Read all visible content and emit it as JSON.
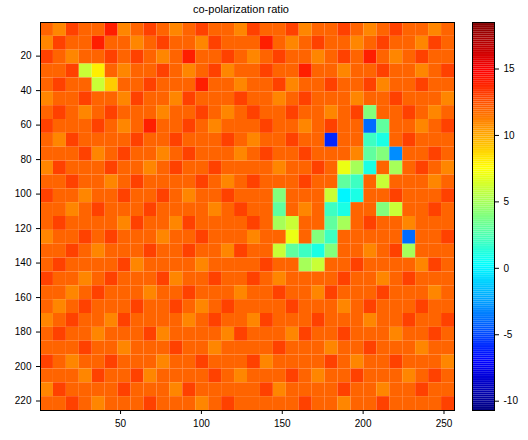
{
  "chart_data": {
    "type": "heatmap",
    "title": "co-polarization ratio",
    "xlim": [
      0.5,
      256.5
    ],
    "ylim": [
      0.5,
      225.5
    ],
    "xticks": [
      50,
      100,
      150,
      200,
      250
    ],
    "yticks": [
      20,
      40,
      60,
      80,
      100,
      120,
      140,
      160,
      180,
      200,
      220
    ],
    "colorbar_range": [
      -10.7,
      18.5
    ],
    "colorbar_ticks": [
      -10,
      -5,
      0,
      5,
      10,
      15
    ],
    "z": [
      [
        12,
        11,
        13,
        12,
        12,
        14,
        11,
        12,
        13,
        12,
        11,
        12,
        13,
        12,
        12,
        11,
        13,
        12,
        12,
        13,
        11,
        12,
        12,
        13,
        12,
        11,
        12,
        13,
        12,
        12,
        11,
        12
      ],
      [
        11,
        13,
        12,
        12,
        14,
        12,
        12,
        11,
        12,
        13,
        12,
        12,
        11,
        13,
        12,
        12,
        12,
        14,
        12,
        11,
        12,
        13,
        12,
        12,
        11,
        12,
        13,
        12,
        12,
        11,
        13,
        12
      ],
      [
        13,
        12,
        11,
        12,
        12,
        13,
        12,
        13,
        12,
        11,
        12,
        14,
        12,
        12,
        13,
        12,
        11,
        12,
        13,
        12,
        12,
        11,
        12,
        13,
        12,
        14,
        12,
        11,
        12,
        13,
        12,
        12
      ],
      [
        12,
        12,
        13,
        6,
        8,
        12,
        11,
        12,
        12,
        13,
        12,
        11,
        12,
        13,
        11,
        12,
        12,
        13,
        12,
        12,
        14,
        12,
        12,
        11,
        12,
        12,
        13,
        12,
        12,
        11,
        12,
        13
      ],
      [
        12,
        13,
        12,
        12,
        6,
        9,
        12,
        12,
        13,
        12,
        12,
        12,
        14,
        12,
        12,
        11,
        12,
        12,
        13,
        11,
        12,
        12,
        13,
        12,
        12,
        13,
        11,
        12,
        12,
        13,
        12,
        12
      ],
      [
        11,
        12,
        12,
        13,
        12,
        12,
        11,
        13,
        12,
        12,
        11,
        13,
        12,
        12,
        12,
        13,
        12,
        12,
        11,
        12,
        13,
        12,
        12,
        12,
        11,
        12,
        12,
        13,
        12,
        12,
        12,
        11
      ],
      [
        12,
        13,
        12,
        11,
        12,
        13,
        12,
        12,
        12,
        11,
        12,
        12,
        13,
        12,
        11,
        12,
        13,
        12,
        12,
        13,
        12,
        12,
        11,
        12,
        13,
        4,
        12,
        12,
        13,
        12,
        11,
        12
      ],
      [
        13,
        12,
        12,
        12,
        13,
        12,
        11,
        12,
        14,
        12,
        12,
        13,
        12,
        11,
        12,
        12,
        12,
        13,
        12,
        12,
        11,
        12,
        13,
        12,
        12,
        -4,
        3,
        12,
        12,
        11,
        12,
        13
      ],
      [
        12,
        11,
        13,
        12,
        12,
        12,
        12,
        13,
        12,
        12,
        13,
        12,
        12,
        12,
        13,
        12,
        11,
        12,
        12,
        13,
        12,
        12,
        -6,
        12,
        12,
        2,
        1,
        12,
        13,
        12,
        12,
        12
      ],
      [
        12,
        12,
        12,
        13,
        11,
        12,
        13,
        12,
        12,
        11,
        12,
        13,
        12,
        12,
        12,
        11,
        12,
        13,
        12,
        12,
        13,
        12,
        12,
        12,
        11,
        3,
        4,
        -3,
        12,
        12,
        13,
        12
      ],
      [
        11,
        13,
        12,
        12,
        12,
        13,
        12,
        12,
        11,
        12,
        13,
        12,
        12,
        13,
        12,
        12,
        12,
        12,
        11,
        12,
        12,
        13,
        12,
        7,
        5,
        1,
        12,
        5,
        12,
        13,
        12,
        11
      ],
      [
        12,
        12,
        13,
        12,
        12,
        11,
        12,
        13,
        12,
        12,
        12,
        12,
        13,
        12,
        11,
        12,
        13,
        12,
        12,
        12,
        13,
        12,
        12,
        3,
        2,
        12,
        6,
        12,
        12,
        12,
        11,
        12
      ],
      [
        13,
        12,
        12,
        11,
        12,
        12,
        13,
        12,
        12,
        13,
        12,
        11,
        12,
        12,
        13,
        12,
        12,
        12,
        4,
        12,
        12,
        12,
        6,
        0,
        1,
        12,
        12,
        13,
        12,
        12,
        12,
        13
      ],
      [
        12,
        12,
        11,
        12,
        13,
        12,
        12,
        12,
        13,
        12,
        12,
        12,
        12,
        11,
        12,
        13,
        12,
        12,
        3,
        12,
        11,
        12,
        2,
        1,
        12,
        12,
        4,
        6,
        12,
        12,
        13,
        12
      ],
      [
        12,
        13,
        12,
        12,
        12,
        12,
        11,
        13,
        12,
        12,
        11,
        13,
        12,
        12,
        12,
        12,
        13,
        12,
        5,
        6,
        12,
        12,
        3,
        5,
        12,
        13,
        12,
        12,
        11,
        12,
        12,
        12
      ],
      [
        11,
        12,
        12,
        13,
        12,
        13,
        12,
        12,
        12,
        11,
        12,
        12,
        13,
        12,
        12,
        12,
        11,
        12,
        12,
        7,
        12,
        4,
        2,
        12,
        12,
        12,
        12,
        12,
        -4,
        12,
        12,
        13
      ],
      [
        12,
        12,
        13,
        12,
        11,
        12,
        12,
        12,
        13,
        12,
        12,
        13,
        12,
        12,
        11,
        13,
        12,
        12,
        6,
        3,
        2,
        1,
        4,
        12,
        12,
        11,
        12,
        13,
        5,
        12,
        12,
        12
      ],
      [
        12,
        13,
        12,
        12,
        12,
        12,
        13,
        11,
        12,
        12,
        12,
        12,
        11,
        12,
        12,
        12,
        12,
        13,
        12,
        12,
        5,
        6,
        12,
        12,
        13,
        12,
        12,
        12,
        12,
        11,
        13,
        12
      ],
      [
        13,
        12,
        12,
        11,
        12,
        13,
        12,
        12,
        12,
        13,
        11,
        12,
        12,
        13,
        12,
        12,
        13,
        12,
        11,
        12,
        12,
        12,
        12,
        13,
        12,
        12,
        11,
        12,
        13,
        12,
        12,
        12
      ],
      [
        12,
        12,
        11,
        12,
        13,
        12,
        12,
        12,
        11,
        12,
        12,
        13,
        12,
        12,
        12,
        11,
        12,
        12,
        13,
        12,
        12,
        11,
        13,
        12,
        12,
        12,
        13,
        12,
        12,
        12,
        11,
        12
      ],
      [
        12,
        11,
        12,
        13,
        12,
        12,
        12,
        13,
        12,
        12,
        13,
        12,
        11,
        12,
        13,
        12,
        12,
        12,
        12,
        13,
        12,
        12,
        12,
        11,
        12,
        13,
        12,
        12,
        12,
        13,
        12,
        12
      ],
      [
        11,
        12,
        13,
        12,
        12,
        11,
        13,
        12,
        12,
        12,
        12,
        11,
        12,
        13,
        12,
        12,
        11,
        13,
        12,
        12,
        12,
        13,
        12,
        12,
        12,
        11,
        12,
        12,
        13,
        12,
        12,
        13
      ],
      [
        12,
        13,
        12,
        12,
        11,
        12,
        12,
        12,
        13,
        11,
        12,
        12,
        12,
        12,
        11,
        13,
        12,
        12,
        12,
        11,
        13,
        12,
        12,
        13,
        12,
        12,
        12,
        11,
        12,
        12,
        13,
        12
      ],
      [
        12,
        12,
        12,
        13,
        12,
        12,
        11,
        12,
        12,
        12,
        13,
        12,
        12,
        11,
        12,
        12,
        12,
        12,
        13,
        12,
        12,
        12,
        11,
        12,
        12,
        13,
        12,
        12,
        12,
        11,
        12,
        12
      ],
      [
        13,
        12,
        11,
        12,
        12,
        13,
        12,
        12,
        12,
        11,
        12,
        12,
        13,
        12,
        12,
        12,
        13,
        11,
        12,
        12,
        12,
        12,
        13,
        12,
        11,
        12,
        12,
        13,
        12,
        12,
        12,
        11
      ],
      [
        12,
        12,
        12,
        11,
        13,
        12,
        12,
        13,
        11,
        12,
        12,
        12,
        12,
        13,
        12,
        11,
        12,
        12,
        12,
        13,
        12,
        11,
        12,
        12,
        13,
        12,
        12,
        12,
        11,
        12,
        13,
        12
      ],
      [
        11,
        13,
        12,
        12,
        12,
        12,
        13,
        12,
        12,
        12,
        11,
        13,
        12,
        12,
        12,
        12,
        12,
        13,
        11,
        12,
        12,
        12,
        12,
        13,
        12,
        12,
        11,
        12,
        12,
        13,
        12,
        12
      ],
      [
        12,
        12,
        13,
        12,
        11,
        12,
        12,
        12,
        13,
        12,
        12,
        12,
        11,
        12,
        13,
        12,
        12,
        12,
        12,
        12,
        13,
        12,
        12,
        11,
        12,
        12,
        13,
        12,
        12,
        12,
        12,
        13
      ]
    ]
  }
}
